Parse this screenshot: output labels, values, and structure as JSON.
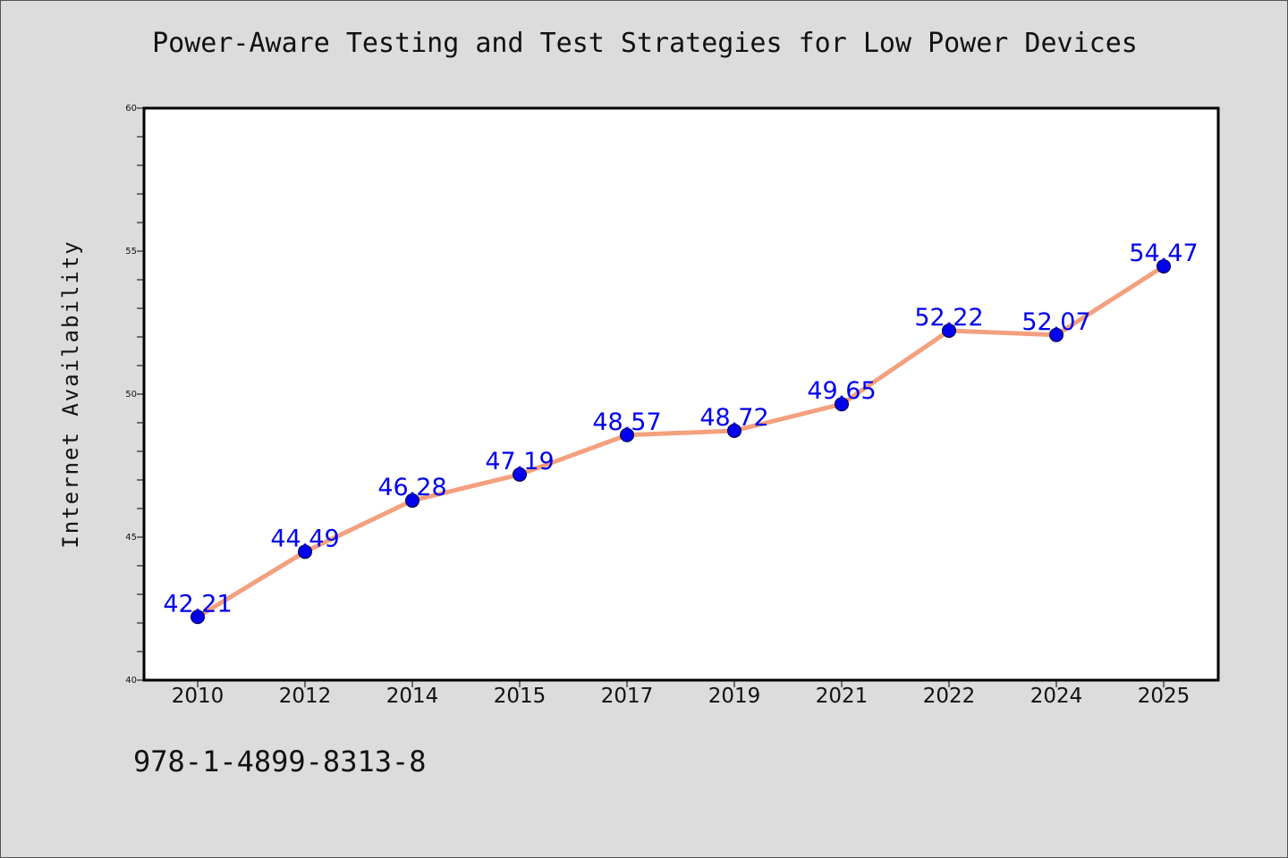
{
  "chart_data": {
    "type": "line",
    "title": "Power-Aware Testing and Test Strategies for Low Power Devices",
    "xlabel": "",
    "ylabel": "Internet Availability",
    "categories": [
      "2010",
      "2012",
      "2014",
      "2015",
      "2017",
      "2019",
      "2021",
      "2022",
      "2024",
      "2025"
    ],
    "series": [
      {
        "values": [
          42.21,
          44.49,
          46.28,
          47.19,
          48.57,
          48.72,
          49.65,
          52.22,
          52.07,
          54.47
        ],
        "data_labels": [
          "42.21",
          "44.49",
          "46.28",
          "47.19",
          "48.57",
          "48.72",
          "49.65",
          "52.22",
          "52.07",
          "54.47"
        ]
      }
    ],
    "ylim": [
      40,
      60
    ],
    "y_major_ticks": [
      40,
      45,
      50,
      55,
      60
    ],
    "y_minor_tick_step": 1,
    "grid": false,
    "legend": "none",
    "colors": {
      "line": "#f4a07e",
      "marker": "#0000ee",
      "marker_edge": "#000033",
      "data_label": "#0000ee",
      "plot_background": "#ffffff",
      "figure_background": "#dcdcdc"
    }
  },
  "caption": "978-1-4899-8313-8"
}
